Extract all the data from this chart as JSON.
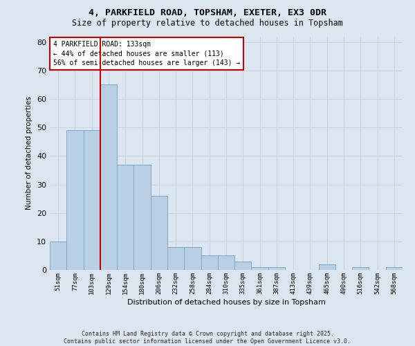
{
  "title": "4, PARKFIELD ROAD, TOPSHAM, EXETER, EX3 0DR",
  "subtitle": "Size of property relative to detached houses in Topsham",
  "xlabel": "Distribution of detached houses by size in Topsham",
  "ylabel": "Number of detached properties",
  "categories": [
    "51sqm",
    "77sqm",
    "103sqm",
    "129sqm",
    "154sqm",
    "180sqm",
    "206sqm",
    "232sqm",
    "258sqm",
    "284sqm",
    "310sqm",
    "335sqm",
    "361sqm",
    "387sqm",
    "413sqm",
    "439sqm",
    "465sqm",
    "490sqm",
    "516sqm",
    "542sqm",
    "568sqm"
  ],
  "values": [
    10,
    49,
    49,
    65,
    37,
    37,
    26,
    8,
    8,
    5,
    5,
    3,
    1,
    1,
    0,
    0,
    2,
    0,
    1,
    0,
    1
  ],
  "bar_color": "#b8cfe4",
  "bar_edge_color": "#7aaac8",
  "vline_x_index": 3,
  "vline_color": "#cc0000",
  "annotation_line1": "4 PARKFIELD ROAD: 133sqm",
  "annotation_line2": "← 44% of detached houses are smaller (113)",
  "annotation_line3": "56% of semi-detached houses are larger (143) →",
  "annotation_box_color": "#cc0000",
  "annotation_bg": "#ffffff",
  "ylim": [
    0,
    82
  ],
  "yticks": [
    0,
    10,
    20,
    30,
    40,
    50,
    60,
    70,
    80
  ],
  "grid_color": "#c8d4e0",
  "footer": "Contains HM Land Registry data © Crown copyright and database right 2025.\nContains public sector information licensed under the Open Government Licence v3.0.",
  "background_color": "#dce6f0",
  "plot_background": "#dce6f0",
  "title_fontsize": 9.5,
  "subtitle_fontsize": 8.5
}
